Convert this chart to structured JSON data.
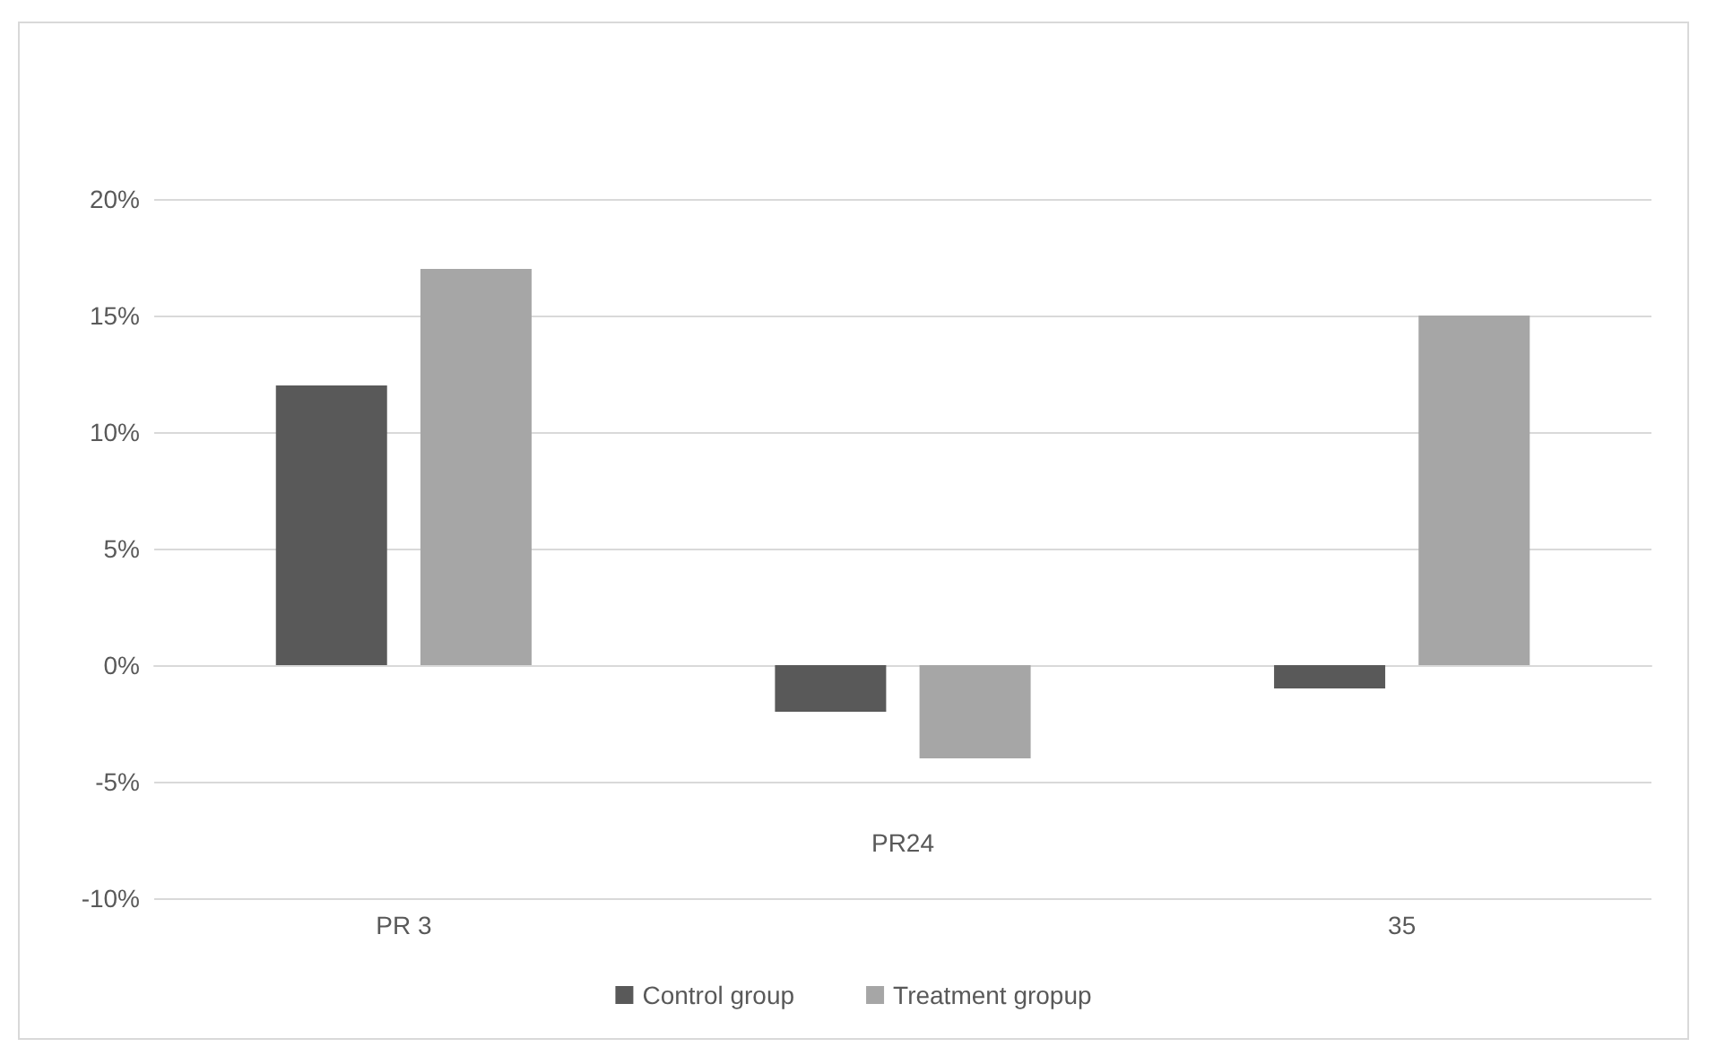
{
  "chart_data": {
    "type": "bar",
    "categories": [
      "PR 3",
      "PR24",
      "35"
    ],
    "series": [
      {
        "name": "Control group",
        "color": "#595959",
        "values": [
          12,
          -2,
          -1
        ]
      },
      {
        "name": "Treatment gropup",
        "color": "#a6a6a6",
        "values": [
          17,
          -4,
          15
        ]
      }
    ],
    "ylim": [
      -10,
      20
    ],
    "yticks": [
      {
        "value": -10,
        "label": "-10%"
      },
      {
        "value": -5,
        "label": "-5%"
      },
      {
        "value": 0,
        "label": "0%"
      },
      {
        "value": 5,
        "label": "5%"
      },
      {
        "value": 10,
        "label": "10%"
      },
      {
        "value": 15,
        "label": "15%"
      },
      {
        "value": 20,
        "label": "20%"
      }
    ],
    "grid": "y",
    "legend": "bottom"
  }
}
